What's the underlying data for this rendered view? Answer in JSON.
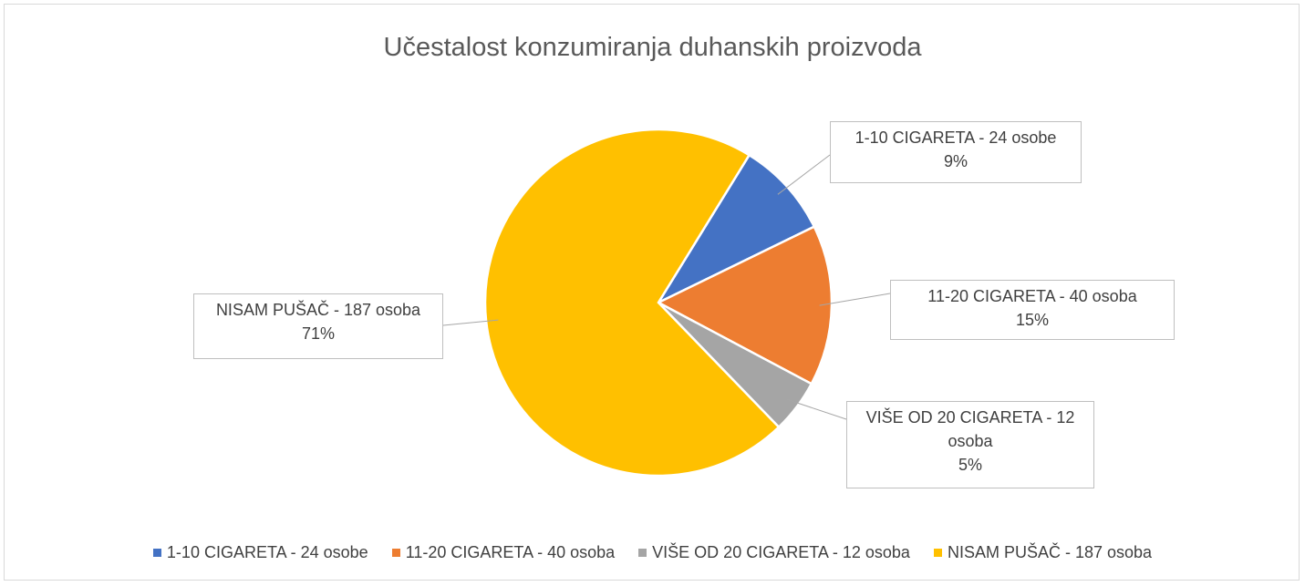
{
  "chart_data": {
    "type": "pie",
    "title": "Učestalost konzumiranja duhanskih proizvoda",
    "categories": [
      "1-10 CIGARETA - 24 osobe",
      "11-20 CIGARETA - 40 osoba",
      "VIŠE OD 20 CIGARETA - 12 osoba",
      "NISAM PUŠAČ - 187 osoba"
    ],
    "values": [
      9,
      15,
      5,
      71
    ],
    "value_labels": [
      "9%",
      "15%",
      "5%",
      "71%"
    ],
    "colors": [
      "#4472c4",
      "#ed7d31",
      "#a5a5a5",
      "#ffc000"
    ],
    "legend": "bottom"
  }
}
